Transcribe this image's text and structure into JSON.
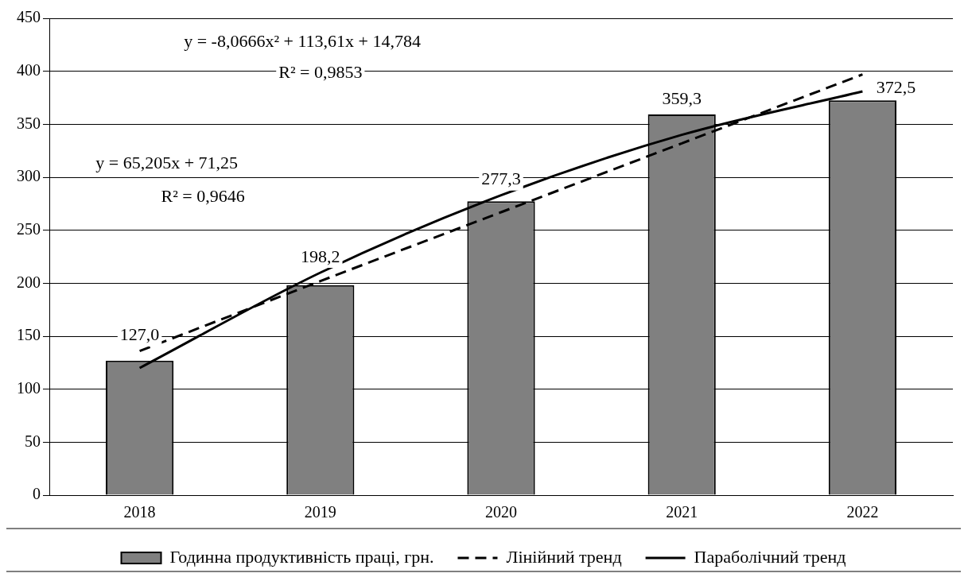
{
  "chart_data": {
    "type": "bar",
    "categories": [
      "2018",
      "2019",
      "2020",
      "2021",
      "2022"
    ],
    "series": [
      {
        "name": "Годинна продуктивність праці, грн.",
        "type": "bar",
        "color": "#808080",
        "values": [
          127.0,
          198.2,
          277.3,
          359.3,
          372.5
        ],
        "value_labels": [
          "127,0",
          "198,2",
          "277,3",
          "359,3",
          "372,5"
        ]
      },
      {
        "name": "Лінійний тренд",
        "type": "line",
        "color": "#000000",
        "line_style": "dashed",
        "values": [
          136,
          202,
          267,
          332,
          397
        ]
      },
      {
        "name": "Параболічний тренд",
        "type": "line",
        "color": "#000000",
        "line_style": "solid",
        "values": [
          120,
          210,
          283,
          340,
          381
        ]
      }
    ],
    "ylim": [
      0,
      450
    ],
    "yticks": [
      0,
      50,
      100,
      150,
      200,
      250,
      300,
      350,
      400,
      450
    ],
    "grid": "y",
    "legend": "bottom",
    "marker": "none",
    "annotations": [
      "y = -8,0666x² + 113,61x + 14,784",
      "R² = 0,9853",
      "y = 65,205x + 71,25",
      "R² = 0,9646"
    ]
  }
}
